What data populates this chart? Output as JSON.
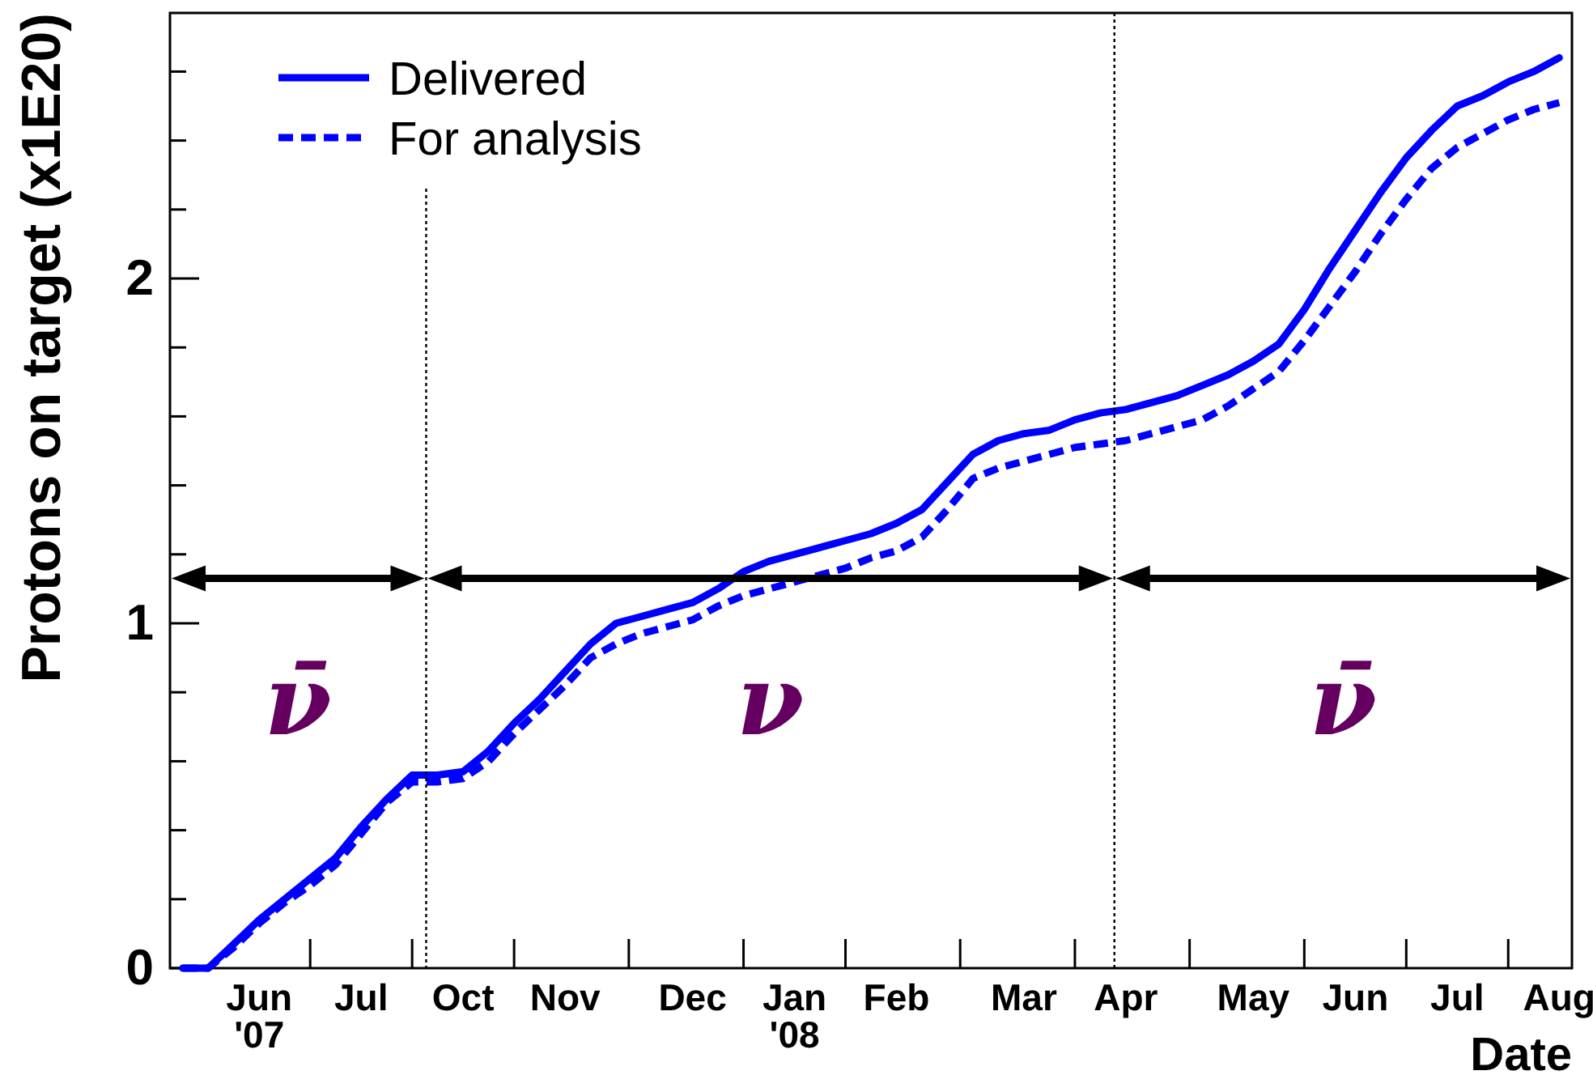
{
  "chart_data": {
    "type": "line",
    "xlabel": "Date",
    "ylabel": "Protons on target (x1E20)",
    "categories": [
      null,
      null,
      null,
      "Jun\n'07",
      null,
      null,
      null,
      "Jul",
      null,
      null,
      null,
      "Oct",
      null,
      null,
      null,
      "Nov",
      null,
      null,
      null,
      null,
      "Dec",
      null,
      null,
      null,
      "Jan\n'08",
      null,
      null,
      null,
      "Feb",
      null,
      null,
      null,
      null,
      "Mar",
      null,
      null,
      null,
      "Apr",
      null,
      null,
      null,
      null,
      "May",
      null,
      null,
      null,
      "Jun",
      null,
      null,
      null,
      "Jul",
      null,
      null,
      null,
      "Aug"
    ],
    "ylim": [
      0,
      2.77
    ],
    "yticks": [
      0,
      {
        "value": 0.2,
        "label": null
      },
      {
        "value": 0.4,
        "label": null
      },
      {
        "value": 0.6,
        "label": null
      },
      {
        "value": 0.8,
        "label": null
      },
      1,
      {
        "value": 1.2,
        "label": null
      },
      {
        "value": 1.4,
        "label": null
      },
      {
        "value": 1.6,
        "label": null
      },
      {
        "value": 1.8,
        "label": null
      },
      2,
      {
        "value": 2.2,
        "label": null
      },
      {
        "value": 2.4,
        "label": null
      },
      {
        "value": 2.6,
        "label": null
      }
    ],
    "legend": "top left",
    "series": [
      {
        "name": "Delivered",
        "color": "#0000ff",
        "line_style": "solid",
        "values": [
          0,
          0,
          0.07,
          0.14,
          0.2,
          0.26,
          0.32,
          0.41,
          0.49,
          0.56,
          0.56,
          0.57,
          0.63,
          0.71,
          0.78,
          0.86,
          0.94,
          1.0,
          1.02,
          1.04,
          1.06,
          1.1,
          1.15,
          1.18,
          1.2,
          1.22,
          1.24,
          1.26,
          1.29,
          1.33,
          1.41,
          1.49,
          1.53,
          1.55,
          1.56,
          1.59,
          1.61,
          1.62,
          1.64,
          1.66,
          1.69,
          1.72,
          1.76,
          1.81,
          1.91,
          2.03,
          2.14,
          2.25,
          2.35,
          2.43,
          2.5,
          2.53,
          2.57,
          2.6,
          2.64
        ]
      },
      {
        "name": "For analysis",
        "color": "#0000ff",
        "line_style": "dashed",
        "values": [
          0,
          0,
          0.06,
          0.13,
          0.19,
          0.24,
          0.3,
          0.39,
          0.48,
          0.54,
          0.54,
          0.55,
          0.6,
          0.68,
          0.75,
          0.82,
          0.9,
          0.94,
          0.97,
          0.99,
          1.01,
          1.05,
          1.08,
          1.1,
          1.12,
          1.14,
          1.16,
          1.19,
          1.21,
          1.25,
          1.33,
          1.42,
          1.45,
          1.47,
          1.49,
          1.51,
          1.52,
          1.53,
          1.55,
          1.57,
          1.59,
          1.63,
          1.68,
          1.73,
          1.82,
          1.92,
          2.02,
          2.13,
          2.23,
          2.32,
          2.38,
          2.42,
          2.46,
          2.49,
          2.51
        ]
      }
    ],
    "annotations": [
      "ν̄",
      "ν",
      "ν̄"
    ]
  }
}
